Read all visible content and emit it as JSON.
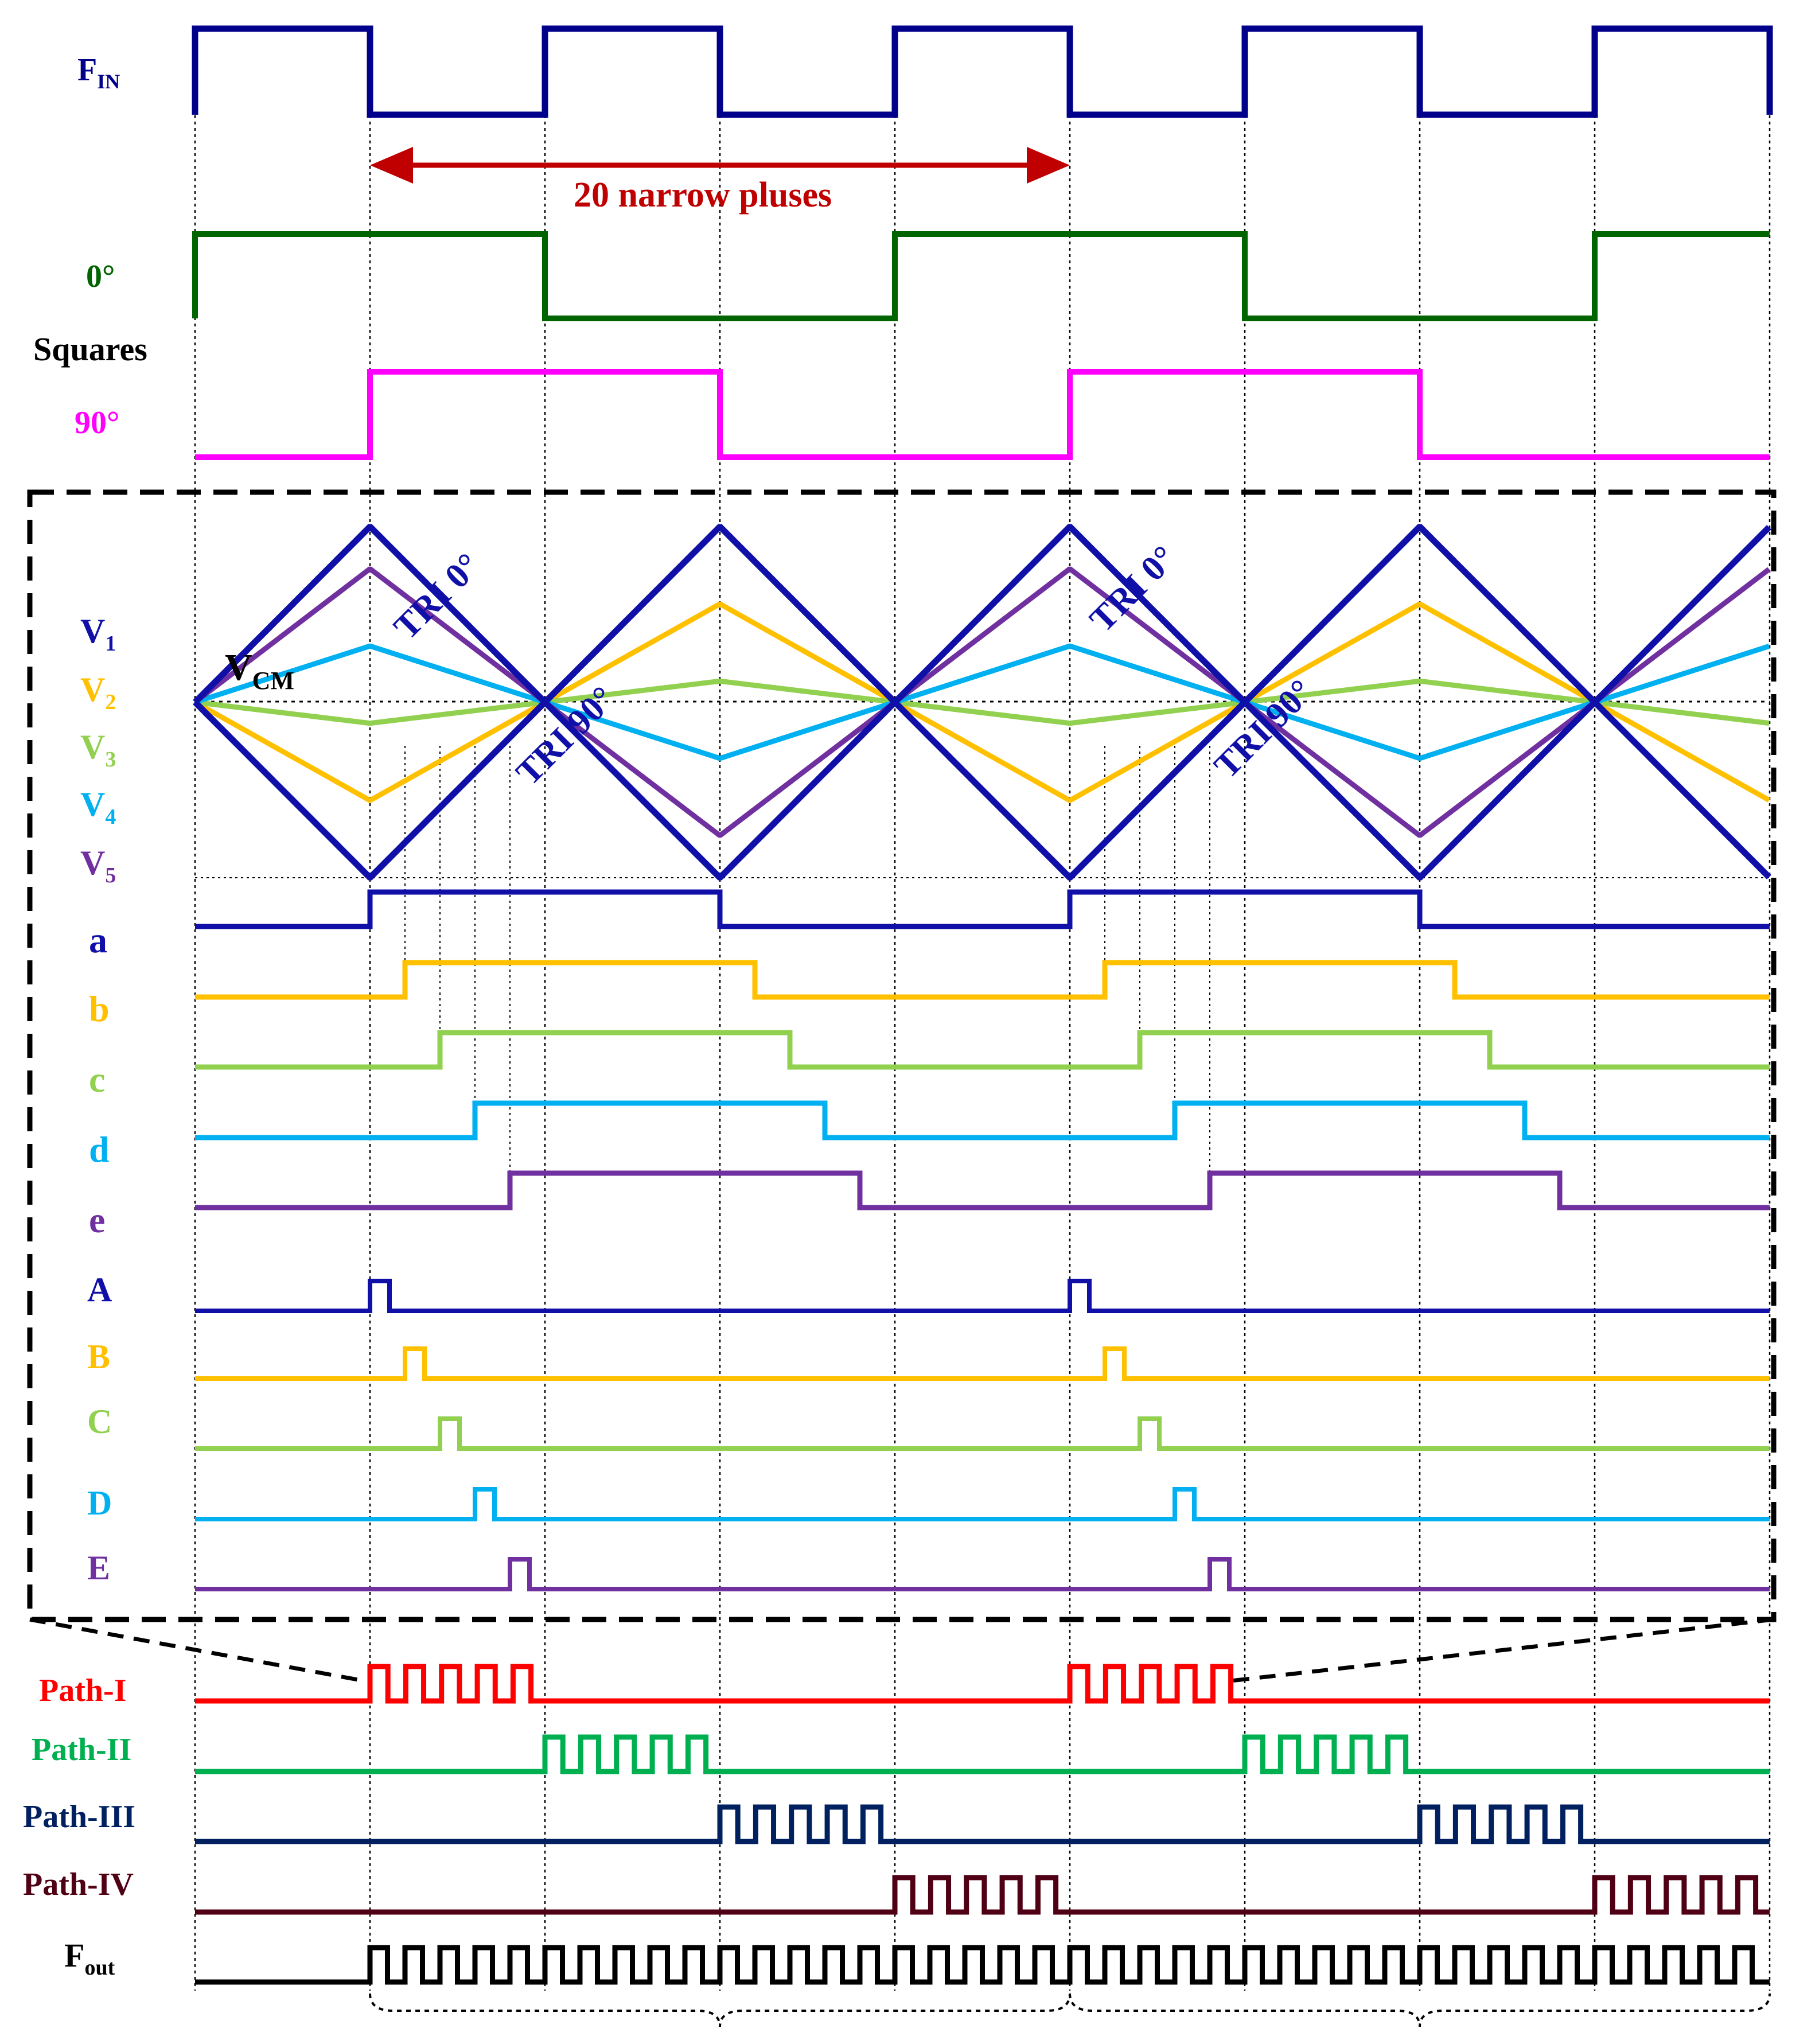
{
  "colors": {
    "fin": "#00008B",
    "sq0": "#006400",
    "sq90": "#FF00FF",
    "tri": "#1010A8",
    "v2": "#FFC000",
    "v3": "#92D050",
    "v4": "#00B0F0",
    "v5": "#7030A0",
    "annot": "#C00000",
    "path1": "#FF0000",
    "path2": "#00B050",
    "path3": "#002060",
    "path4": "#500014",
    "fout": "#000000"
  },
  "annotation": {
    "text": "20 narrow pluses"
  },
  "labels": {
    "fin_main": "F",
    "fin_sub": "IN",
    "sq0": "0°",
    "squares": "Squares",
    "sq90": "90°",
    "v1": "V",
    "v1_sub": "1",
    "v2": "V",
    "v2_sub": "2",
    "v3": "V",
    "v3_sub": "3",
    "v4": "V",
    "v4_sub": "4",
    "v5": "V",
    "v5_sub": "5",
    "vcm": "V",
    "vcm_sub": "CM",
    "tri0": "TRI 0°",
    "tri90": "TRI 90°",
    "a": "a",
    "b": "b",
    "c": "c",
    "d": "d",
    "e": "e",
    "A": "A",
    "B": "B",
    "C": "C",
    "D": "D",
    "E": "E",
    "path1": "Path-I",
    "path2": "Path-II",
    "path3": "Path-III",
    "path4": "Path-IV",
    "fout_main": "F",
    "fout_sub": "out"
  },
  "signals": {
    "fin_start_high": true,
    "sq0_edges_fin_cycles": [
      0,
      2,
      4,
      6,
      8
    ],
    "sq90_start_high": false,
    "level_b_delay_fraction": 0.2,
    "level_c_delay_fraction": 0.4,
    "level_d_delay_fraction": 0.6,
    "level_e_delay_fraction": 0.8,
    "narrow_pulses_per_path_burst": 5,
    "paths": 4,
    "fout_pulses_per_period": 20
  }
}
